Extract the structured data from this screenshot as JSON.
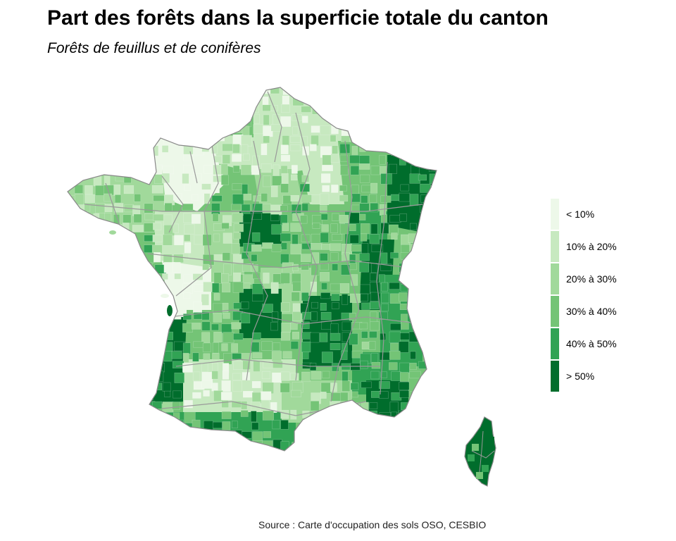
{
  "title": "Part des forêts dans la superficie totale du canton",
  "subtitle": "Forêts de feuillus et de conifères",
  "caption": "Source : Carte d'occupation des sols OSO, CESBIO",
  "legend": [
    {
      "label": "< 10%",
      "color": "#edf8e9"
    },
    {
      "label": "10% à 20%",
      "color": "#c7e9c0"
    },
    {
      "label": "20% à 30%",
      "color": "#a1d99b"
    },
    {
      "label": "30% à 40%",
      "color": "#74c476"
    },
    {
      "label": "40% à 50%",
      "color": "#31a354"
    },
    {
      "label": "> 50%",
      "color": "#006d2c"
    }
  ],
  "map": {
    "border_color": "#999999",
    "regions": [
      {
        "id": "nord",
        "class": 1
      },
      {
        "id": "picardie",
        "class": 1
      },
      {
        "id": "normandie",
        "class": 0
      },
      {
        "id": "bretagne",
        "class": 2
      },
      {
        "id": "ile-de-france",
        "class": 2
      },
      {
        "id": "champagne",
        "class": 1
      },
      {
        "id": "lorraine",
        "class": 3
      },
      {
        "id": "alsace-vosges",
        "class": 5
      },
      {
        "id": "pays-de-la-loire",
        "class": 1
      },
      {
        "id": "sologne",
        "class": 5
      },
      {
        "id": "centre",
        "class": 2
      },
      {
        "id": "bourgogne",
        "class": 3
      },
      {
        "id": "franche-comte",
        "class": 4
      },
      {
        "id": "jura",
        "class": 5
      },
      {
        "id": "poitou-charentes",
        "class": 0
      },
      {
        "id": "limousin",
        "class": 3
      },
      {
        "id": "auvergne",
        "class": 2
      },
      {
        "id": "massif-central",
        "class": 5
      },
      {
        "id": "rhone-alpes",
        "class": 3
      },
      {
        "id": "alpes",
        "class": 4
      },
      {
        "id": "landes",
        "class": 5
      },
      {
        "id": "gironde-dordogne",
        "class": 3
      },
      {
        "id": "midi-pyrenees",
        "class": 1
      },
      {
        "id": "cevennes",
        "class": 5
      },
      {
        "id": "provence",
        "class": 4
      },
      {
        "id": "var",
        "class": 5
      },
      {
        "id": "pyrenees",
        "class": 4
      },
      {
        "id": "languedoc",
        "class": 2
      },
      {
        "id": "corse",
        "class": 5
      }
    ]
  }
}
